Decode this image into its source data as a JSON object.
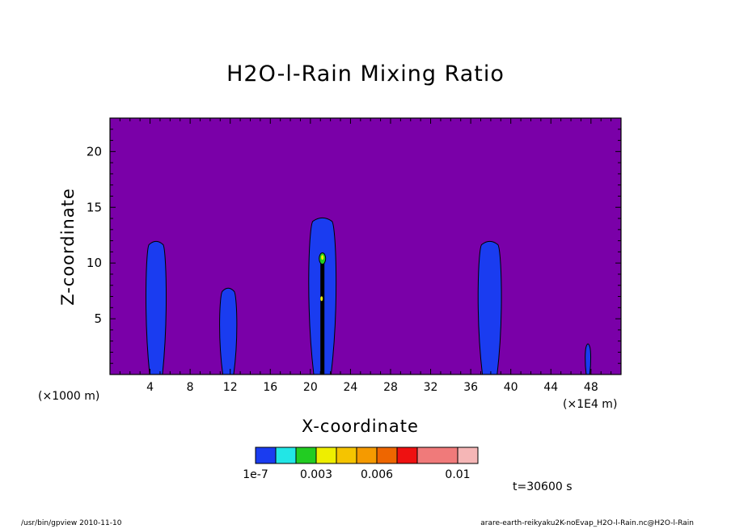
{
  "chart_data": {
    "type": "contour",
    "title": "H2O-l-Rain Mixing Ratio",
    "xlabel": "X-coordinate",
    "ylabel": "Z-coordinate",
    "x_unit_label": "(×1000 m)",
    "x_unit_label_right": "(×1E4 m)",
    "xlim": [
      0,
      51
    ],
    "ylim": [
      0,
      23
    ],
    "x_ticks": [
      4,
      8,
      12,
      16,
      20,
      24,
      28,
      32,
      36,
      40,
      44,
      48
    ],
    "y_ticks": [
      5,
      10,
      15,
      20
    ],
    "colorbar": {
      "colors": [
        "#1a3cf0",
        "#22e6e6",
        "#22cc22",
        "#eeee00",
        "#f5c400",
        "#f59a00",
        "#ee6600",
        "#ee1111",
        "#f07a7a",
        "#f5b6b6"
      ],
      "tick_labels": [
        "1e-7",
        "0.003",
        "0.006",
        "0.01"
      ]
    },
    "background_color": "#7a00a8",
    "cells": [
      {
        "x_center": 4.6,
        "top": 11.8
      },
      {
        "x_center": 11.8,
        "top": 7.6
      },
      {
        "x_center": 21.2,
        "top": 13.9
      },
      {
        "x_center": 37.9,
        "top": 11.8
      },
      {
        "x_center": 47.7,
        "top": 2.6
      }
    ],
    "time_label": "t=30600 s"
  },
  "footer": {
    "left": "/usr/bin/gpview   2010-11-10",
    "right": "arare-earth-reikyaku2K-noEvap_H2O-l-Rain.nc@H2O-l-Rain"
  }
}
